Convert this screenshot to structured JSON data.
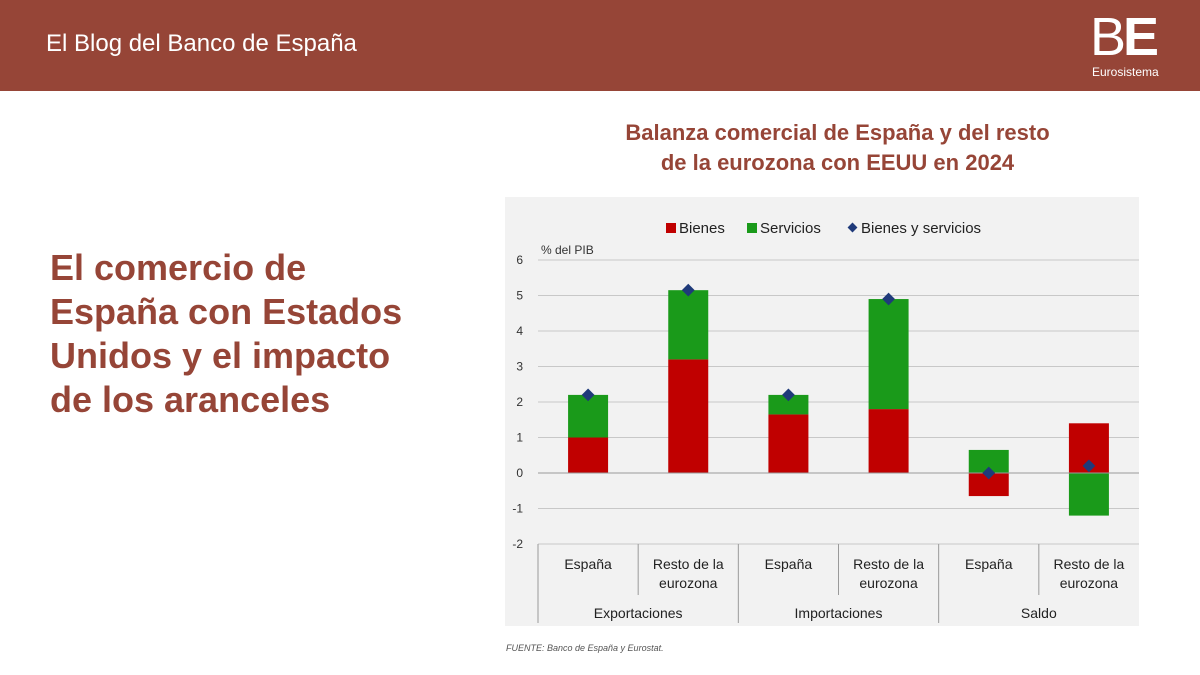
{
  "header": {
    "blog_title": "El Blog del Banco de España",
    "logo_text": "BE",
    "logo_sub": "Eurosistema"
  },
  "headline": "El comercio de España con Estados Unidos y el impacto de los aranceles",
  "source": "FUENTE: Banco de España y Eurostat.",
  "colors": {
    "brand": "#964537",
    "bienes": "#c00000",
    "servicios": "#1a9a1a",
    "total_marker": "#1f3a7a",
    "panel_bg": "#f2f2f2"
  },
  "chart_data": {
    "type": "bar",
    "stacked": true,
    "title": "Balanza comercial de España y del resto de la eurozona con EEUU en 2024",
    "title_lines": [
      "Balanza comercial de España y del resto",
      "de la eurozona con EEUU en 2024"
    ],
    "ylabel": "% del PIB",
    "ylim": [
      -2,
      6
    ],
    "yticks": [
      6,
      5,
      4,
      3,
      2,
      1,
      0,
      -1,
      -2
    ],
    "grid": true,
    "legend_position": "top",
    "categories": [
      {
        "label": [
          "España"
        ],
        "group": "Exportaciones"
      },
      {
        "label": [
          "Resto de la",
          "eurozona"
        ],
        "group": "Exportaciones"
      },
      {
        "label": [
          "España"
        ],
        "group": "Importaciones"
      },
      {
        "label": [
          "Resto de la",
          "eurozona"
        ],
        "group": "Importaciones"
      },
      {
        "label": [
          "España"
        ],
        "group": "Saldo"
      },
      {
        "label": [
          "Resto de la",
          "eurozona"
        ],
        "group": "Saldo"
      }
    ],
    "groups": [
      "Exportaciones",
      "Importaciones",
      "Saldo"
    ],
    "series": [
      {
        "name": "Bienes",
        "kind": "bar",
        "color": "#c00000",
        "values": [
          1.0,
          3.2,
          1.65,
          1.8,
          -0.65,
          1.4
        ]
      },
      {
        "name": "Servicios",
        "kind": "bar",
        "color": "#1a9a1a",
        "values": [
          1.2,
          1.95,
          0.55,
          3.1,
          0.65,
          -1.2
        ]
      },
      {
        "name": "Bienes y servicios",
        "kind": "marker",
        "color": "#1f3a7a",
        "values": [
          2.2,
          5.15,
          2.2,
          4.9,
          0.0,
          0.2
        ]
      }
    ]
  }
}
